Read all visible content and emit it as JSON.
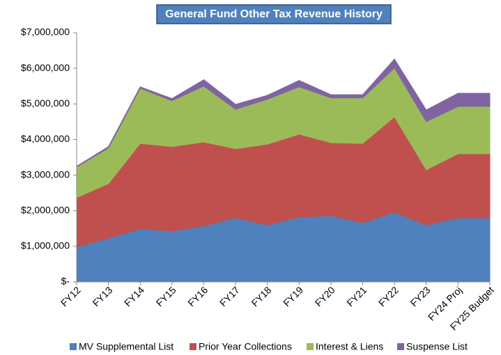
{
  "chart_data": {
    "type": "stacked_area",
    "title": "General Fund Other Tax Revenue History",
    "categories": [
      "FY12",
      "FY13",
      "FY14",
      "FY15",
      "FY16",
      "FY17",
      "FY18",
      "FY19",
      "FY20",
      "FY21",
      "FY22",
      "FY23",
      "FY24 Proj",
      "FY25 Budget"
    ],
    "series": [
      {
        "name": "MV Supplemental List",
        "color": "#4f81bd",
        "values": [
          980000,
          1230000,
          1490000,
          1430000,
          1570000,
          1800000,
          1600000,
          1820000,
          1860000,
          1660000,
          1960000,
          1600000,
          1800000,
          1800000
        ]
      },
      {
        "name": "Prior Year Collections",
        "color": "#c0504d",
        "values": [
          1390000,
          1530000,
          2400000,
          2370000,
          2360000,
          1940000,
          2270000,
          2330000,
          2050000,
          2230000,
          2680000,
          1550000,
          1800000,
          1800000
        ]
      },
      {
        "name": "Interest & Liens",
        "color": "#9bbb59",
        "values": [
          860000,
          1000000,
          1550000,
          1290000,
          1570000,
          1110000,
          1260000,
          1330000,
          1260000,
          1280000,
          1370000,
          1350000,
          1330000,
          1330000
        ]
      },
      {
        "name": "Suspense List",
        "color": "#8064a2",
        "values": [
          20000,
          40000,
          40000,
          60000,
          180000,
          140000,
          110000,
          180000,
          90000,
          90000,
          250000,
          330000,
          370000,
          370000
        ]
      }
    ],
    "ylim": [
      0,
      7000000
    ],
    "yticks": [
      {
        "value": 0,
        "label": "$-"
      },
      {
        "value": 1000000,
        "label": "$1,000,000"
      },
      {
        "value": 2000000,
        "label": "$2,000,000"
      },
      {
        "value": 3000000,
        "label": "$3,000,000"
      },
      {
        "value": 4000000,
        "label": "$4,000,000"
      },
      {
        "value": 5000000,
        "label": "$5,000,000"
      },
      {
        "value": 6000000,
        "label": "$6,000,000"
      },
      {
        "value": 7000000,
        "label": "$7,000,000"
      }
    ]
  }
}
